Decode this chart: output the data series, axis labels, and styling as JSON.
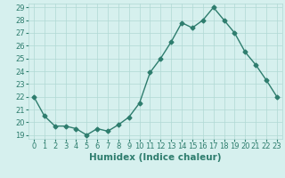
{
  "x": [
    0,
    1,
    2,
    3,
    4,
    5,
    6,
    7,
    8,
    9,
    10,
    11,
    12,
    13,
    14,
    15,
    16,
    17,
    18,
    19,
    20,
    21,
    22,
    23
  ],
  "y": [
    22,
    20.5,
    19.7,
    19.7,
    19.5,
    19.0,
    19.5,
    19.3,
    19.8,
    20.4,
    21.5,
    23.9,
    25.0,
    26.3,
    27.8,
    27.4,
    28.0,
    29.0,
    28.0,
    27.0,
    25.5,
    24.5,
    23.3,
    22.0
  ],
  "line_color": "#2e7d6e",
  "marker": "D",
  "marker_size": 2.5,
  "bg_color": "#d6f0ee",
  "grid_color": "#b0d8d4",
  "xlabel": "Humidex (Indice chaleur)",
  "ylim": [
    19,
    29
  ],
  "xlim": [
    -0.5,
    23.5
  ],
  "yticks": [
    19,
    20,
    21,
    22,
    23,
    24,
    25,
    26,
    27,
    28,
    29
  ],
  "xticks": [
    0,
    1,
    2,
    3,
    4,
    5,
    6,
    7,
    8,
    9,
    10,
    11,
    12,
    13,
    14,
    15,
    16,
    17,
    18,
    19,
    20,
    21,
    22,
    23
  ],
  "tick_label_color": "#2e7d6e",
  "tick_fontsize": 6,
  "xlabel_fontsize": 7.5,
  "xlabel_color": "#2e7d6e"
}
